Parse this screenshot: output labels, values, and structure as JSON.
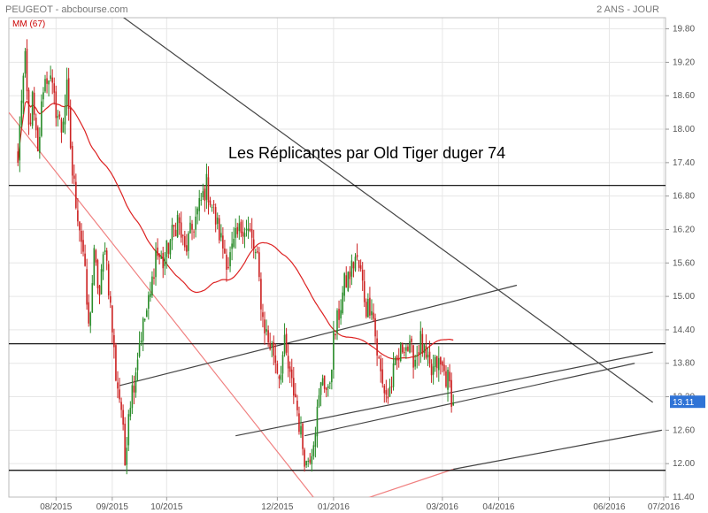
{
  "header": {
    "source": "PEUGEOT - abcbourse.com",
    "period": "2 ANS - JOUR"
  },
  "chart_data": {
    "type": "candlestick",
    "indicator_label": "MM (67)",
    "annotation": "Les Réplicantes par Old Tiger duger 74",
    "last_price_label": "13.11",
    "ylim": [
      11.4,
      20.0
    ],
    "yticks": [
      "19.80",
      "19.20",
      "18.60",
      "18.00",
      "17.40",
      "16.80",
      "16.20",
      "15.60",
      "15.00",
      "14.40",
      "13.80",
      "13.20",
      "12.60",
      "12.00",
      "11.40"
    ],
    "xticks": [
      {
        "label": "08/2015",
        "d": 21
      },
      {
        "label": "09/2015",
        "d": 52
      },
      {
        "label": "10/2015",
        "d": 82
      },
      {
        "label": "12/2015",
        "d": 143
      },
      {
        "label": "01/2016",
        "d": 174
      },
      {
        "label": "03/2016",
        "d": 234
      },
      {
        "label": "04/2016",
        "d": 265
      },
      {
        "label": "06/2016",
        "d": 326
      },
      {
        "label": "07/2016",
        "d": 356
      }
    ],
    "close_anchors": [
      [
        0,
        17.4
      ],
      [
        2,
        18.6
      ],
      [
        4,
        19.2
      ],
      [
        6,
        18.0
      ],
      [
        8,
        18.5
      ],
      [
        11,
        17.5
      ],
      [
        14,
        18.8
      ],
      [
        17,
        19.0
      ],
      [
        20,
        18.5
      ],
      [
        24,
        18.0
      ],
      [
        27,
        18.7
      ],
      [
        30,
        17.2
      ],
      [
        33,
        16.5
      ],
      [
        36,
        15.8
      ],
      [
        39,
        14.4
      ],
      [
        42,
        15.7
      ],
      [
        45,
        15.0
      ],
      [
        48,
        16.0
      ],
      [
        51,
        14.8
      ],
      [
        54,
        13.6
      ],
      [
        57,
        13.0
      ],
      [
        59,
        12.0
      ],
      [
        61,
        13.0
      ],
      [
        64,
        13.5
      ],
      [
        67,
        14.2
      ],
      [
        70,
        14.6
      ],
      [
        73,
        15.0
      ],
      [
        76,
        15.8
      ],
      [
        80,
        15.6
      ],
      [
        84,
        16.0
      ],
      [
        88,
        16.4
      ],
      [
        92,
        15.8
      ],
      [
        96,
        16.2
      ],
      [
        100,
        16.6
      ],
      [
        104,
        17.0
      ],
      [
        108,
        16.5
      ],
      [
        112,
        16.0
      ],
      [
        116,
        15.6
      ],
      [
        120,
        16.0
      ],
      [
        124,
        16.3
      ],
      [
        128,
        16.1
      ],
      [
        132,
        15.6
      ],
      [
        135,
        14.6
      ],
      [
        138,
        14.2
      ],
      [
        141,
        14.0
      ],
      [
        144,
        13.6
      ],
      [
        147,
        14.1
      ],
      [
        150,
        13.5
      ],
      [
        153,
        13.2
      ],
      [
        156,
        12.5
      ],
      [
        159,
        12.0
      ],
      [
        162,
        12.3
      ],
      [
        165,
        12.9
      ],
      [
        168,
        13.6
      ],
      [
        171,
        13.2
      ],
      [
        174,
        14.2
      ],
      [
        177,
        14.7
      ],
      [
        180,
        15.2
      ],
      [
        183,
        15.4
      ],
      [
        186,
        15.7
      ],
      [
        189,
        15.4
      ],
      [
        192,
        14.8
      ],
      [
        195,
        14.9
      ],
      [
        198,
        14.0
      ],
      [
        201,
        13.4
      ],
      [
        204,
        13.2
      ],
      [
        207,
        13.6
      ],
      [
        210,
        13.9
      ],
      [
        213,
        14.2
      ],
      [
        216,
        14.0
      ],
      [
        219,
        13.9
      ],
      [
        222,
        14.2
      ],
      [
        225,
        13.8
      ],
      [
        228,
        13.6
      ],
      [
        231,
        13.8
      ],
      [
        234,
        13.7
      ],
      [
        237,
        13.5
      ],
      [
        240,
        13.1
      ]
    ],
    "close_min": 11.8,
    "close_max": 19.4,
    "ma_period": 67,
    "lines": [
      {
        "name": "downtrend-line-black",
        "color": "#444444",
        "p1": [
          -5,
          21.5
        ],
        "p2": [
          350,
          13.1
        ]
      },
      {
        "name": "downtrend-line-red",
        "color": "#f08080",
        "p1": [
          -5,
          18.3
        ],
        "p2": [
          175,
          10.9
        ]
      },
      {
        "name": "channel-upper",
        "color": "#444444",
        "p1": [
          56,
          13.4
        ],
        "p2": [
          275,
          15.2
        ]
      },
      {
        "name": "channel-mid",
        "color": "#444444",
        "p1": [
          120,
          12.5
        ],
        "p2": [
          350,
          14.0
        ]
      },
      {
        "name": "channel-lower",
        "color": "#444444",
        "p1": [
          158,
          12.5
        ],
        "p2": [
          340,
          13.8
        ]
      },
      {
        "name": "channel-bottom",
        "color": "#444444",
        "p1": [
          240,
          11.9
        ],
        "p2": [
          355,
          12.6
        ]
      },
      {
        "name": "red-support-line",
        "color": "#f08080",
        "p1": [
          185,
          11.3
        ],
        "p2": [
          240,
          11.9
        ]
      },
      {
        "name": "horizontal-resistance",
        "color": "#000000",
        "p1": [
          -5,
          16.99
        ],
        "p2": [
          357,
          16.99
        ]
      },
      {
        "name": "horizontal-mid",
        "color": "#000000",
        "p1": [
          -5,
          14.15
        ],
        "p2": [
          357,
          14.15
        ]
      },
      {
        "name": "horizontal-support",
        "color": "#000000",
        "p1": [
          -5,
          11.88
        ],
        "p2": [
          357,
          11.88
        ]
      }
    ]
  }
}
